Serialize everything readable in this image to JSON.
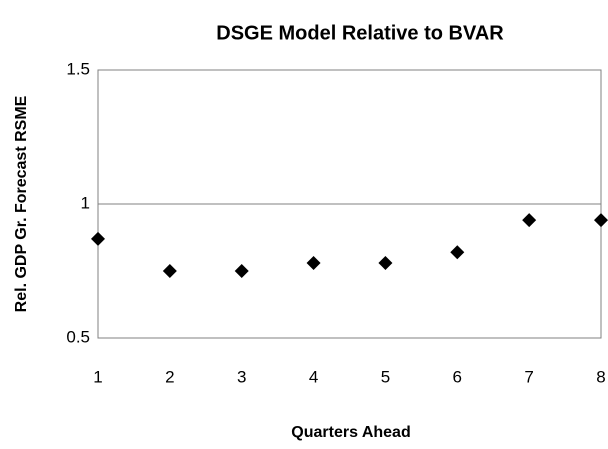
{
  "chart_data": {
    "type": "scatter",
    "title": "DSGE Model Relative to BVAR",
    "x_label": "Quarters Ahead",
    "y_label": "Rel. GDP Gr. Forecast RSME",
    "x": [
      1,
      2,
      3,
      4,
      5,
      6,
      7,
      8
    ],
    "values": [
      0.87,
      0.75,
      0.75,
      0.78,
      0.78,
      0.82,
      0.94,
      0.94
    ],
    "color": "#000000",
    "xlim": [
      1,
      8
    ],
    "xticks": [
      1,
      2,
      3,
      4,
      5,
      6,
      7,
      8
    ],
    "ylim": [
      0.5,
      1.5
    ],
    "yticks": [
      0.5,
      1,
      1.5
    ],
    "grid": true
  }
}
